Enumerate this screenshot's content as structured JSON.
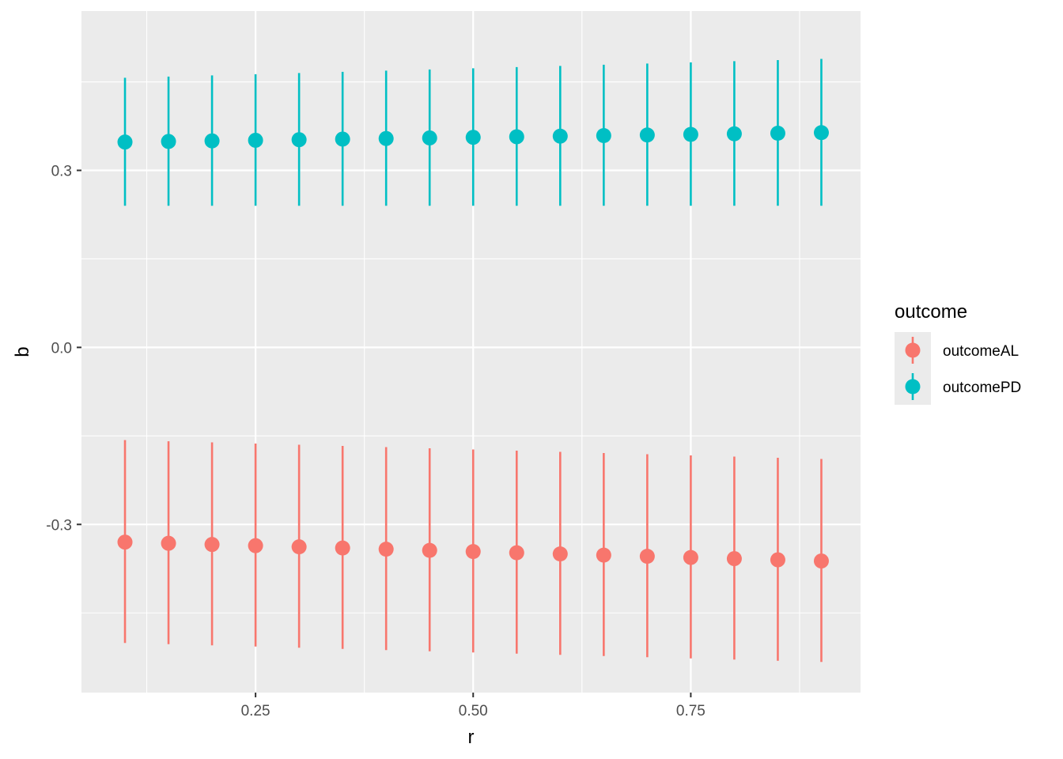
{
  "chart_data": {
    "type": "scatter",
    "title": "",
    "xlabel": "r",
    "ylabel": "b",
    "xlim": [
      0.05,
      0.945
    ],
    "ylim": [
      -0.585,
      0.57
    ],
    "x_ticks": [
      0.25,
      0.5,
      0.75
    ],
    "x_tick_labels": [
      "0.25",
      "0.50",
      "0.75"
    ],
    "y_ticks": [
      -0.3,
      0.0,
      0.3
    ],
    "y_tick_labels": [
      "-0.3",
      "0.0",
      "0.3"
    ],
    "grid": true,
    "legend": {
      "title": "outcome",
      "position": "right"
    },
    "x": [
      0.1,
      0.15,
      0.2,
      0.25,
      0.3,
      0.35,
      0.4,
      0.45,
      0.5,
      0.55,
      0.6,
      0.65,
      0.7,
      0.75,
      0.8,
      0.85,
      0.9
    ],
    "series": [
      {
        "name": "outcomeAL",
        "color": "#F8766D",
        "values": [
          -0.33,
          -0.332,
          -0.334,
          -0.336,
          -0.338,
          -0.34,
          -0.342,
          -0.344,
          -0.346,
          -0.348,
          -0.35,
          -0.352,
          -0.354,
          -0.356,
          -0.358,
          -0.36,
          -0.362
        ],
        "lower": [
          -0.501,
          -0.503,
          -0.505,
          -0.507,
          -0.509,
          -0.511,
          -0.513,
          -0.515,
          -0.517,
          -0.519,
          -0.521,
          -0.523,
          -0.525,
          -0.527,
          -0.529,
          -0.531,
          -0.533
        ],
        "upper": [
          -0.157,
          -0.159,
          -0.161,
          -0.163,
          -0.165,
          -0.167,
          -0.169,
          -0.171,
          -0.173,
          -0.175,
          -0.177,
          -0.179,
          -0.181,
          -0.183,
          -0.185,
          -0.187,
          -0.189
        ]
      },
      {
        "name": "outcomePD",
        "color": "#00BFC4",
        "values": [
          0.348,
          0.349,
          0.35,
          0.351,
          0.352,
          0.353,
          0.354,
          0.355,
          0.356,
          0.357,
          0.358,
          0.359,
          0.36,
          0.361,
          0.362,
          0.363,
          0.364
        ],
        "lower": [
          0.24,
          0.24,
          0.24,
          0.24,
          0.24,
          0.24,
          0.24,
          0.24,
          0.24,
          0.24,
          0.24,
          0.24,
          0.24,
          0.24,
          0.24,
          0.24,
          0.24
        ],
        "upper": [
          0.457,
          0.459,
          0.461,
          0.463,
          0.465,
          0.467,
          0.469,
          0.471,
          0.473,
          0.475,
          0.477,
          0.479,
          0.481,
          0.483,
          0.485,
          0.487,
          0.489
        ]
      }
    ]
  }
}
